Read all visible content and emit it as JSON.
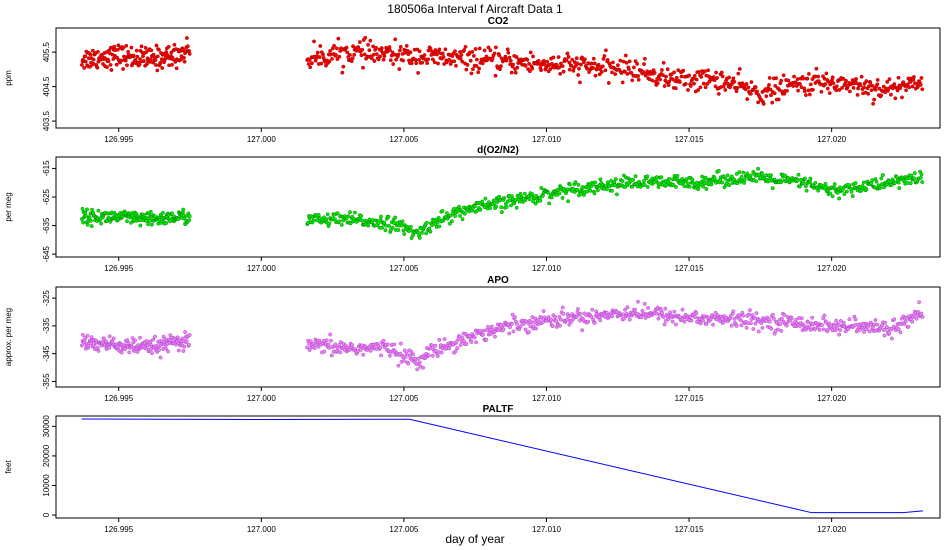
{
  "figure": {
    "title": "180506a   Interval f Aircraft Data 1",
    "xlabel": "day of year"
  },
  "chart_data": [
    {
      "type": "scatter",
      "title": "CO2",
      "ylabel": "ppm",
      "color": "#ff0000",
      "edge_color": "#8b0000",
      "xlim": [
        126.9928,
        127.0238
      ],
      "ylim": [
        403.3,
        406.2
      ],
      "xticks": [
        126.995,
        127.0,
        127.005,
        127.01,
        127.015,
        127.02
      ],
      "xtick_labels": [
        "126.995",
        "127.000",
        "127.005",
        "127.010",
        "127.015",
        "127.020"
      ],
      "yticks": [
        403.5,
        404.5,
        405.5
      ],
      "ytick_labels": [
        "403.5",
        "404.5",
        "405.5"
      ],
      "segments": [
        {
          "x": [
            126.9937,
            126.995,
            126.996,
            126.997,
            126.9975
          ],
          "y": [
            405.3,
            405.4,
            405.3,
            405.4,
            405.6
          ]
        },
        {
          "x": [
            127.0016,
            127.003,
            127.005,
            127.007,
            127.009,
            127.011,
            127.013,
            127.0145,
            127.016,
            127.0175,
            127.019,
            127.0205,
            127.022,
            127.0232
          ],
          "y": [
            405.3,
            405.5,
            405.4,
            405.3,
            405.2,
            405.1,
            405.0,
            404.7,
            404.7,
            404.3,
            404.6,
            404.6,
            404.4,
            404.7
          ]
        }
      ],
      "noise": 0.3,
      "points_per_segment": [
        190,
        750
      ]
    },
    {
      "type": "scatter",
      "title": "d(O2/N2)",
      "ylabel": "per meg",
      "color": "#00ee00",
      "edge_color": "#006400",
      "xlim": [
        126.9928,
        127.0238
      ],
      "ylim": [
        -646,
        -611
      ],
      "xticks": [
        126.995,
        127.0,
        127.005,
        127.01,
        127.015,
        127.02
      ],
      "xtick_labels": [
        "126.995",
        "127.000",
        "127.005",
        "127.010",
        "127.015",
        "127.020"
      ],
      "yticks": [
        -645,
        -635,
        -625,
        -615
      ],
      "ytick_labels": [
        "-645",
        "-635",
        "-625",
        "-615"
      ],
      "segments": [
        {
          "x": [
            126.9937,
            126.995,
            126.996,
            126.997,
            126.9975
          ],
          "y": [
            -632,
            -632,
            -633,
            -632,
            -632
          ]
        },
        {
          "x": [
            127.0016,
            127.003,
            127.0045,
            127.0055,
            127.006,
            127.007,
            127.009,
            127.011,
            127.013,
            127.015,
            127.017,
            127.019,
            127.02,
            127.022,
            127.0232
          ],
          "y": [
            -633,
            -633,
            -634,
            -638,
            -634,
            -630,
            -626,
            -622,
            -620,
            -620,
            -618,
            -620,
            -623,
            -620,
            -618
          ]
        }
      ],
      "noise": 2.2,
      "points_per_segment": [
        190,
        750
      ]
    },
    {
      "type": "scatter",
      "title": "APO",
      "ylabel": "approx. per meg",
      "color": "#ee82ee",
      "edge_color": "#9932cc",
      "xlim": [
        126.9928,
        127.0238
      ],
      "ylim": [
        -357,
        -321
      ],
      "xticks": [
        126.995,
        127.0,
        127.005,
        127.01,
        127.015,
        127.02
      ],
      "xtick_labels": [
        "126.995",
        "127.000",
        "127.005",
        "127.010",
        "127.015",
        "127.020"
      ],
      "yticks": [
        -355,
        -345,
        -335,
        -325
      ],
      "ytick_labels": [
        "-355",
        "-345",
        "-335",
        "-325"
      ],
      "segments": [
        {
          "x": [
            126.9937,
            126.995,
            126.996,
            126.997,
            126.9975
          ],
          "y": [
            -341,
            -342,
            -343,
            -341,
            -341
          ]
        },
        {
          "x": [
            127.0016,
            127.003,
            127.0045,
            127.0055,
            127.006,
            127.007,
            127.009,
            127.011,
            127.013,
            127.015,
            127.017,
            127.019,
            127.02,
            127.022,
            127.0232
          ],
          "y": [
            -342,
            -343,
            -343,
            -348,
            -344,
            -340,
            -334,
            -332,
            -330,
            -332,
            -333,
            -334,
            -335,
            -336,
            -331
          ]
        }
      ],
      "noise": 2.6,
      "points_per_segment": [
        190,
        750
      ]
    },
    {
      "type": "line",
      "title": "PALTF",
      "ylabel": "feet",
      "color": "#0000ff",
      "xlim": [
        126.9928,
        127.0238
      ],
      "ylim": [
        -1000,
        33500
      ],
      "xticks": [
        126.995,
        127.0,
        127.005,
        127.01,
        127.015,
        127.02
      ],
      "xtick_labels": [
        "126.995",
        "127.000",
        "127.005",
        "127.010",
        "127.015",
        "127.020"
      ],
      "yticks": [
        0,
        10000,
        20000,
        30000
      ],
      "ytick_labels": [
        "0",
        "10000",
        "20000",
        "30000"
      ],
      "x": [
        126.9937,
        127.0,
        127.0052,
        127.0193,
        127.0225,
        127.0232
      ],
      "y": [
        32500,
        32300,
        32400,
        800,
        800,
        1400
      ]
    }
  ]
}
